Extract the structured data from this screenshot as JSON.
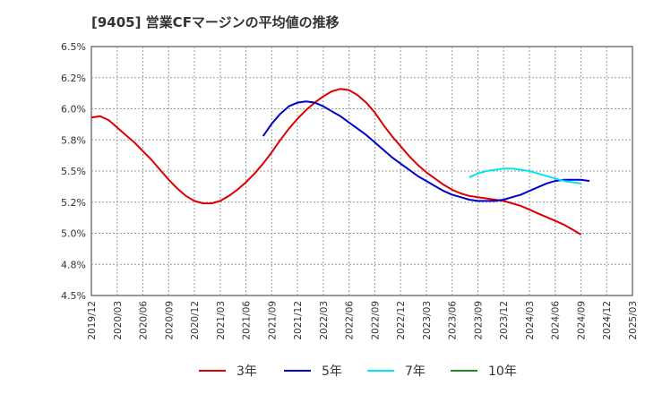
{
  "chart_data": {
    "type": "line",
    "title": "[9405]  営業CFマージンの平均値の推移",
    "xlabel": "",
    "ylabel": "",
    "ylim": [
      4.5,
      6.5
    ],
    "grid": true,
    "legend_placement": "bottom-center",
    "y_ticks": [
      "6.5%",
      "6.2%",
      "6.0%",
      "5.8%",
      "5.5%",
      "5.2%",
      "5.0%",
      "4.8%",
      "4.5%"
    ],
    "y_tick_values": [
      6.5,
      6.25,
      6.0,
      5.75,
      5.5,
      5.25,
      5.0,
      4.75,
      4.5
    ],
    "x_ticks": [
      "2019/12",
      "2020/03",
      "2020/06",
      "2020/09",
      "2020/12",
      "2021/03",
      "2021/06",
      "2021/09",
      "2021/12",
      "2022/03",
      "2022/06",
      "2022/09",
      "2022/12",
      "2023/03",
      "2023/06",
      "2023/09",
      "2023/12",
      "2024/03",
      "2024/06",
      "2024/09",
      "2024/12",
      "2025/03"
    ],
    "series": [
      {
        "name": "3年",
        "color": "#dd0000",
        "start": "2019/12",
        "values": [
          5.93,
          5.94,
          5.91,
          5.85,
          5.79,
          5.73,
          5.66,
          5.59,
          5.51,
          5.43,
          5.36,
          5.3,
          5.26,
          5.24,
          5.24,
          5.26,
          5.3,
          5.35,
          5.41,
          5.48,
          5.56,
          5.65,
          5.75,
          5.84,
          5.92,
          5.99,
          6.05,
          6.1,
          6.14,
          6.16,
          6.15,
          6.11,
          6.05,
          5.97,
          5.87,
          5.78,
          5.7,
          5.62,
          5.55,
          5.49,
          5.44,
          5.39,
          5.35,
          5.32,
          5.3,
          5.29,
          5.28,
          5.27,
          5.26,
          5.24,
          5.22,
          5.19,
          5.16,
          5.13,
          5.1,
          5.07,
          5.03,
          4.99
        ]
      },
      {
        "name": "5年",
        "color": "#0000cc",
        "start": "2021/08",
        "values": [
          5.78,
          5.88,
          5.96,
          6.02,
          6.05,
          6.06,
          6.05,
          6.02,
          5.98,
          5.94,
          5.89,
          5.84,
          5.79,
          5.73,
          5.67,
          5.61,
          5.56,
          5.51,
          5.46,
          5.42,
          5.38,
          5.34,
          5.31,
          5.29,
          5.27,
          5.26,
          5.26,
          5.26,
          5.27,
          5.29,
          5.31,
          5.34,
          5.37,
          5.4,
          5.42,
          5.43,
          5.43,
          5.43,
          5.42
        ]
      },
      {
        "name": "7年",
        "color": "#00e5ee",
        "start": "2023/08",
        "values": [
          5.45,
          5.48,
          5.5,
          5.51,
          5.52,
          5.52,
          5.51,
          5.5,
          5.48,
          5.46,
          5.44,
          5.42,
          5.41,
          5.4
        ]
      },
      {
        "name": "10年",
        "color": "#228822",
        "start": "",
        "values": []
      }
    ]
  }
}
